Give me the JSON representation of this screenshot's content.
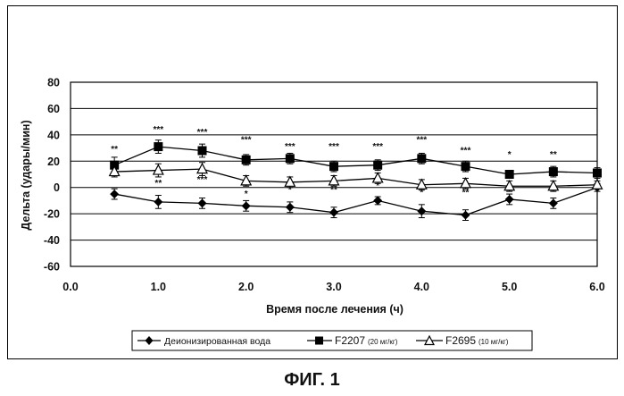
{
  "figure_caption": "ФИГ. 1",
  "chart_data": {
    "type": "line",
    "xlabel": "Время после лечения (ч)",
    "ylabel": "Дельта (удары/мин)",
    "xlim": [
      0.0,
      6.0
    ],
    "ylim": [
      -60,
      80
    ],
    "x_ticks": [
      "0.0",
      "1.0",
      "2.0",
      "3.0",
      "4.0",
      "5.0",
      "6.0"
    ],
    "y_ticks": [
      "80",
      "60",
      "40",
      "20",
      "0",
      "-20",
      "-40",
      "-60"
    ],
    "grid": "horizontal",
    "legend_position": "bottom",
    "series": [
      {
        "key": "water",
        "legend_text": "Деионизированная вода",
        "legend_dose": "",
        "marker": "diamond",
        "x": [
          0.5,
          1.0,
          1.5,
          2.0,
          2.5,
          3.0,
          3.5,
          4.0,
          4.5,
          5.0,
          5.5,
          6.0
        ],
        "y": [
          -5,
          -11,
          -12,
          -14,
          -15,
          -19,
          -10,
          -18,
          -21,
          -9,
          -12,
          0
        ],
        "err": [
          4,
          5,
          4,
          4,
          4,
          4,
          3,
          5,
          4,
          4,
          4,
          3
        ]
      },
      {
        "key": "f2207",
        "legend_text": "F2207",
        "legend_dose": "(20 мг/кг)",
        "marker": "square",
        "x": [
          0.5,
          1.0,
          1.5,
          2.0,
          2.5,
          3.0,
          3.5,
          4.0,
          4.5,
          5.0,
          5.5,
          6.0
        ],
        "y": [
          17,
          31,
          28,
          21,
          22,
          16,
          17,
          22,
          16,
          10,
          12,
          11
        ],
        "err": [
          6,
          5,
          5,
          4,
          4,
          4,
          4,
          4,
          4,
          3,
          4,
          4
        ]
      },
      {
        "key": "f2695",
        "legend_text": "F2695",
        "legend_dose": "(10 мг/кг)",
        "marker": "triangle",
        "x": [
          0.5,
          1.0,
          1.5,
          2.0,
          2.5,
          3.0,
          3.5,
          4.0,
          4.5,
          5.0,
          5.5,
          6.0
        ],
        "y": [
          12,
          13,
          14,
          5,
          4,
          5,
          7,
          2,
          3,
          1,
          1,
          2
        ],
        "err": [
          4,
          5,
          5,
          4,
          4,
          4,
          4,
          4,
          4,
          4,
          4,
          3
        ]
      }
    ],
    "annotations_upper": [
      {
        "x": 0.5,
        "y": 27,
        "text": "**"
      },
      {
        "x": 1.0,
        "y": 42,
        "text": "***"
      },
      {
        "x": 1.5,
        "y": 40,
        "text": "***"
      },
      {
        "x": 2.0,
        "y": 34,
        "text": "***"
      },
      {
        "x": 2.5,
        "y": 29,
        "text": "***"
      },
      {
        "x": 3.0,
        "y": 29,
        "text": "***"
      },
      {
        "x": 3.5,
        "y": 29,
        "text": "***"
      },
      {
        "x": 4.0,
        "y": 34,
        "text": "***"
      },
      {
        "x": 4.5,
        "y": 26,
        "text": "***"
      },
      {
        "x": 5.0,
        "y": 23,
        "text": "*"
      },
      {
        "x": 5.5,
        "y": 23,
        "text": "**"
      }
    ],
    "annotations_lower": [
      {
        "x": 1.0,
        "y": 1,
        "text": "**"
      },
      {
        "x": 1.5,
        "y": 4,
        "text": "***"
      },
      {
        "x": 2.0,
        "y": -7,
        "text": "*"
      },
      {
        "x": 2.5,
        "y": -4,
        "text": "*"
      },
      {
        "x": 3.0,
        "y": -4,
        "text": "**"
      },
      {
        "x": 3.5,
        "y": -1,
        "text": "*"
      },
      {
        "x": 4.0,
        "y": -6,
        "text": "*"
      },
      {
        "x": 4.5,
        "y": -6,
        "text": "**"
      }
    ]
  }
}
